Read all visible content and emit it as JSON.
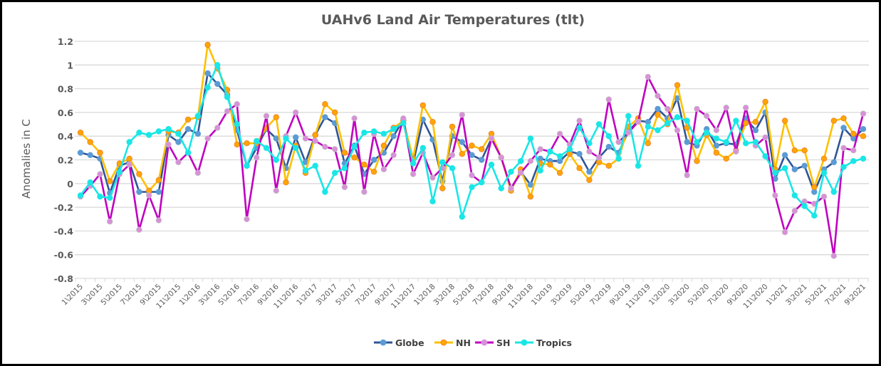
{
  "chart_data": {
    "type": "line",
    "title": "UAHv6 Land Air Temperatures (tlt)",
    "xlabel": "",
    "ylabel": "Anomalies in C",
    "ylim": [
      -0.8,
      1.2
    ],
    "yticks": [
      "1.2",
      "1",
      "0.8",
      "0.6",
      "0.4",
      "0.2",
      "0",
      "-0.2",
      "-0.4",
      "-0.6",
      "-0.8"
    ],
    "ytick_values": [
      1.2,
      1.0,
      0.8,
      0.6,
      0.4,
      0.2,
      0,
      -0.2,
      -0.4,
      -0.6,
      -0.8
    ],
    "grid": true,
    "legend_position": "bottom",
    "x": [
      "1\\2015",
      "2\\2015",
      "3\\2015",
      "4\\2015",
      "5\\2015",
      "6\\2015",
      "7\\2015",
      "8\\2015",
      "9\\2015",
      "10\\2015",
      "11\\2015",
      "12\\2015",
      "1\\2016",
      "2\\2016",
      "3\\2016",
      "4\\2016",
      "5\\2016",
      "6\\2016",
      "7\\2016",
      "8\\2016",
      "9\\2016",
      "10\\2016",
      "11\\2016",
      "12\\2016",
      "1\\2017",
      "2\\2017",
      "3\\2017",
      "4\\2017",
      "5\\2017",
      "6\\2017",
      "7\\2017",
      "8\\2017",
      "9\\2017",
      "10\\2017",
      "11\\2017",
      "12\\2017",
      "1\\2018",
      "2\\2018",
      "3\\2018",
      "4\\2018",
      "5\\2018",
      "6\\2018",
      "7\\2018",
      "8\\2018",
      "9\\2018",
      "10\\2018",
      "11\\2018",
      "12\\2018",
      "1\\2019",
      "2\\2019",
      "3\\2019",
      "4\\2019",
      "5\\2019",
      "6\\2019",
      "7\\2019",
      "8\\2019",
      "9\\2019",
      "10\\2019",
      "11\\2019",
      "12\\2019",
      "1\\2020",
      "2\\2020",
      "3\\2020",
      "4\\2020",
      "5\\2020",
      "6\\2020",
      "7\\2020",
      "8\\2020",
      "9\\2020",
      "10\\2020",
      "11\\2020",
      "12\\2020",
      "1\\2021",
      "2\\2021",
      "3\\2021",
      "4\\2021",
      "5\\2021",
      "6\\2021",
      "7\\2021",
      "8\\2021",
      "9\\2021"
    ],
    "xtick_labels": [
      "1\\2015",
      "3\\2015",
      "5\\2015",
      "7\\2015",
      "9\\2015",
      "11\\2015",
      "1\\2016",
      "3\\2016",
      "5\\2016",
      "7\\2016",
      "9\\2016",
      "11\\2016",
      "1\\2017",
      "3\\2017",
      "5\\2017",
      "7\\2017",
      "9\\2017",
      "11\\2017",
      "1\\2018",
      "3\\2018",
      "5\\2018",
      "7\\2018",
      "9\\2018",
      "11\\2018",
      "1\\2019",
      "3\\2019",
      "5\\2019",
      "7\\2019",
      "9\\2019",
      "11\\2019",
      "1\\2020",
      "3\\2020",
      "5\\2020",
      "7\\2020",
      "9\\2020",
      "11\\2020",
      "1\\2021",
      "3\\2021",
      "5\\2021",
      "7\\2021",
      "9\\2021"
    ],
    "series": [
      {
        "name": "Globe",
        "line_color": "#2F5597",
        "marker_color": "#5B9BD5",
        "values": [
          0.26,
          0.24,
          0.21,
          -0.08,
          0.15,
          0.18,
          -0.07,
          -0.07,
          -0.07,
          0.41,
          0.35,
          0.46,
          0.42,
          0.93,
          0.84,
          0.75,
          0.45,
          0.15,
          0.3,
          0.46,
          0.38,
          0.13,
          0.39,
          0.18,
          0.41,
          0.56,
          0.51,
          0.17,
          0.32,
          0.08,
          0.2,
          0.26,
          0.4,
          0.54,
          0.17,
          0.54,
          0.37,
          0.02,
          0.4,
          0.35,
          0.24,
          0.2,
          0.38,
          0.22,
          -0.04,
          0.1,
          -0.01,
          0.21,
          0.19,
          0.19,
          0.27,
          0.25,
          0.1,
          0.22,
          0.31,
          0.26,
          0.44,
          0.53,
          0.52,
          0.63,
          0.55,
          0.72,
          0.35,
          0.32,
          0.46,
          0.32,
          0.34,
          0.33,
          0.55,
          0.45,
          0.6,
          0.04,
          0.24,
          0.12,
          0.15,
          -0.07,
          0.12,
          0.18,
          0.47,
          0.38,
          0.46
        ]
      },
      {
        "name": "NH",
        "line_color": "#FFC000",
        "marker_color": "#FFA500",
        "values": [
          0.43,
          0.35,
          0.26,
          0.02,
          0.17,
          0.21,
          0.08,
          -0.06,
          0.03,
          0.44,
          0.43,
          0.54,
          0.56,
          1.17,
          0.97,
          0.79,
          0.33,
          0.34,
          0.34,
          0.47,
          0.56,
          0.01,
          0.32,
          0.09,
          0.41,
          0.67,
          0.6,
          0.26,
          0.22,
          0.16,
          0.1,
          0.32,
          0.47,
          0.53,
          0.21,
          0.66,
          0.52,
          -0.04,
          0.48,
          0.25,
          0.32,
          0.29,
          0.42,
          0.22,
          -0.06,
          0.12,
          -0.11,
          0.17,
          0.16,
          0.09,
          0.25,
          0.13,
          0.03,
          0.18,
          0.15,
          0.21,
          0.48,
          0.55,
          0.34,
          0.58,
          0.5,
          0.83,
          0.47,
          0.19,
          0.41,
          0.26,
          0.21,
          0.28,
          0.51,
          0.52,
          0.69,
          0.12,
          0.53,
          0.28,
          0.28,
          -0.03,
          0.21,
          0.53,
          0.55,
          0.42,
          0.4
        ]
      },
      {
        "name": "SH",
        "line_color": "#C000C0",
        "marker_color": "#DA8FDA",
        "values": [
          -0.11,
          -0.02,
          0.08,
          -0.32,
          0.08,
          0.16,
          -0.39,
          -0.1,
          -0.31,
          0.33,
          0.18,
          0.26,
          0.09,
          0.38,
          0.47,
          0.61,
          0.67,
          -0.3,
          0.22,
          0.57,
          -0.06,
          0.4,
          0.6,
          0.38,
          0.36,
          0.31,
          0.29,
          -0.03,
          0.55,
          -0.07,
          0.42,
          0.12,
          0.24,
          0.55,
          0.08,
          0.26,
          0.05,
          0.13,
          0.24,
          0.58,
          0.07,
          0.01,
          0.38,
          0.22,
          -0.04,
          0.09,
          0.19,
          0.29,
          0.27,
          0.42,
          0.33,
          0.53,
          0.27,
          0.22,
          0.71,
          0.35,
          0.43,
          0.52,
          0.9,
          0.74,
          0.63,
          0.45,
          0.07,
          0.63,
          0.57,
          0.45,
          0.64,
          0.27,
          0.64,
          0.32,
          0.39,
          -0.1,
          -0.41,
          -0.23,
          -0.15,
          -0.17,
          -0.11,
          -0.61,
          0.3,
          0.28,
          0.59
        ]
      },
      {
        "name": "Tropics",
        "line_color": "#1AE6E6",
        "marker_color": "#1AE6E6",
        "values": [
          -0.1,
          0.01,
          -0.11,
          -0.12,
          0.1,
          0.35,
          0.43,
          0.41,
          0.44,
          0.46,
          0.42,
          0.26,
          0.57,
          0.81,
          1.0,
          0.73,
          0.5,
          0.15,
          0.36,
          0.3,
          0.2,
          0.38,
          0.3,
          0.11,
          0.15,
          -0.07,
          0.09,
          0.13,
          0.31,
          0.43,
          0.44,
          0.42,
          0.46,
          0.51,
          0.17,
          0.3,
          -0.15,
          0.18,
          0.13,
          -0.28,
          -0.03,
          0.01,
          0.16,
          -0.04,
          0.1,
          0.19,
          0.38,
          0.11,
          0.27,
          0.23,
          0.29,
          0.47,
          0.34,
          0.5,
          0.4,
          0.21,
          0.57,
          0.15,
          0.48,
          0.45,
          0.51,
          0.56,
          0.53,
          0.35,
          0.43,
          0.38,
          0.35,
          0.53,
          0.34,
          0.35,
          0.23,
          0.09,
          0.13,
          -0.1,
          -0.19,
          -0.27,
          0.09,
          -0.07,
          0.14,
          0.19,
          0.21
        ]
      }
    ]
  }
}
